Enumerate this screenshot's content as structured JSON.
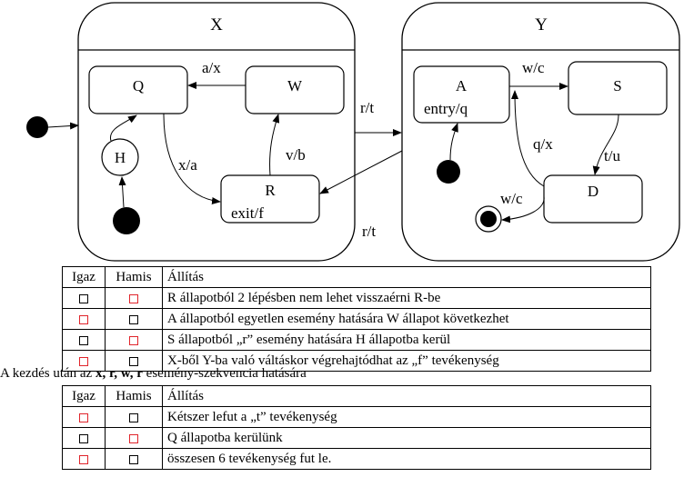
{
  "states": {
    "X": "X",
    "Y": "Y",
    "Q": "Q",
    "W": "W",
    "H": "H",
    "R": "R",
    "R_action": "exit/f",
    "A": "A",
    "A_action": "entry/q",
    "S": "S",
    "D": "D"
  },
  "transitions": {
    "W_to_Q": "a/x",
    "Q_to_R": "x/a",
    "R_to_W": "v/b",
    "X_to_Y": "r/t",
    "Y_to_R": "r/t",
    "A_to_S": "w/c",
    "S_to_D": "t/u",
    "D_to_A": "q/x",
    "D_to_final": "w/c"
  },
  "table1": {
    "headers": [
      "Igaz",
      "Hamis",
      "Állítás"
    ],
    "rows": [
      {
        "text": "R állapotból 2 lépésben nem lehet visszaérni R-be",
        "red": "hamis"
      },
      {
        "text": "A állapotból egyetlen esemény hatására W állapot következhet",
        "red": "igaz"
      },
      {
        "text": "S állapotból „r” esemény hatására H állapotba kerül",
        "red": "hamis"
      },
      {
        "text": "X-ből Y-ba való váltáskor végrehajtódhat az „f” tevékenység",
        "red": "igaz"
      }
    ]
  },
  "caption": {
    "prefix": "A kezdés után az ",
    "sequence": "x, r, w, r",
    "suffix": " esemény-szekvencia hatására"
  },
  "table2": {
    "headers": [
      "Igaz",
      "Hamis",
      "Állítás"
    ],
    "rows": [
      {
        "text": "Kétszer lefut a „t” tevékenység",
        "red": "igaz"
      },
      {
        "text": "Q állapotba kerülünk",
        "red": "hamis"
      },
      {
        "text": "összesen 6 tevékenység fut le.",
        "red": "igaz"
      }
    ]
  }
}
